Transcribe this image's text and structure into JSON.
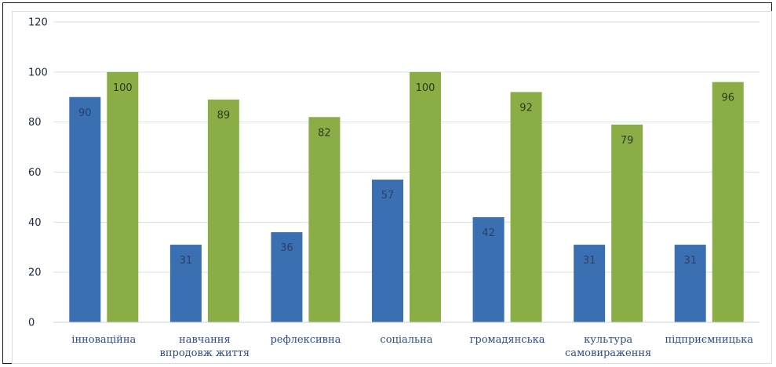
{
  "chart_data": {
    "type": "bar",
    "categories": [
      [
        "інноваційна"
      ],
      [
        "навчання",
        "впродовж життя"
      ],
      [
        "рефлексивна"
      ],
      [
        "соціальна"
      ],
      [
        "громадянська"
      ],
      [
        "культура",
        "самовираження"
      ],
      [
        "підприємницька"
      ]
    ],
    "series": [
      {
        "values": [
          90,
          31,
          36,
          57,
          42,
          31,
          31
        ],
        "labels": [
          "90",
          "31",
          "36",
          "57",
          "42",
          "31",
          "31"
        ],
        "color": "#3a6fb2"
      },
      {
        "values": [
          100,
          89,
          82,
          100,
          92,
          79,
          96
        ],
        "labels": [
          "100",
          "89",
          "82",
          "100",
          "92",
          "79",
          "96"
        ],
        "color": "#8aae45"
      }
    ],
    "ylim": [
      0,
      120
    ],
    "yticks": [
      "0",
      "20",
      "40",
      "60",
      "80",
      "100",
      "120"
    ],
    "grid": true,
    "legend": "none"
  }
}
